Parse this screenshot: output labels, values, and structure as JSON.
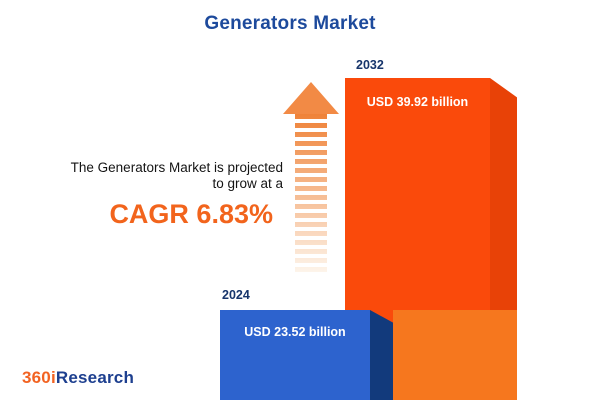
{
  "title": "Generators Market",
  "annotation": {
    "line1": "The Generators Market is projected",
    "line2": "to grow at a",
    "cagr": "CAGR 6.83%"
  },
  "bars": {
    "b2024": {
      "year": "2024",
      "label": "USD 23.52 billion"
    },
    "b2032": {
      "year": "2032",
      "label": "USD 39.92 billion"
    }
  },
  "logo": {
    "prefix": "360i",
    "suffix": "Research"
  },
  "colors": {
    "title_blue": "#1d4a9c",
    "cagr_orange": "#f2641c",
    "bar_blue_front": "#2d63ce",
    "bar_blue_side": "#123a7c",
    "bar_orange_front": "#fa4a0b",
    "bar_orange_side": "#e84207",
    "bar_orange_light": "#f6771e",
    "arrow_orange": "#f28a45",
    "logo_orange": "#f26322",
    "logo_blue": "#1d3f8f"
  },
  "chart_data": {
    "type": "bar",
    "title": "Generators Market",
    "categories": [
      "2024",
      "2032"
    ],
    "values": [
      23.52,
      39.92
    ],
    "unit": "USD billion",
    "value_labels": [
      "USD 23.52 billion",
      "USD 39.92 billion"
    ],
    "series_colors": [
      "#2d63ce",
      "#fa4a0b"
    ],
    "annotations": [
      "The Generators Market is projected to grow at a",
      "CAGR 6.83%"
    ],
    "legend": "none",
    "grid": false,
    "axes_visible": false
  }
}
